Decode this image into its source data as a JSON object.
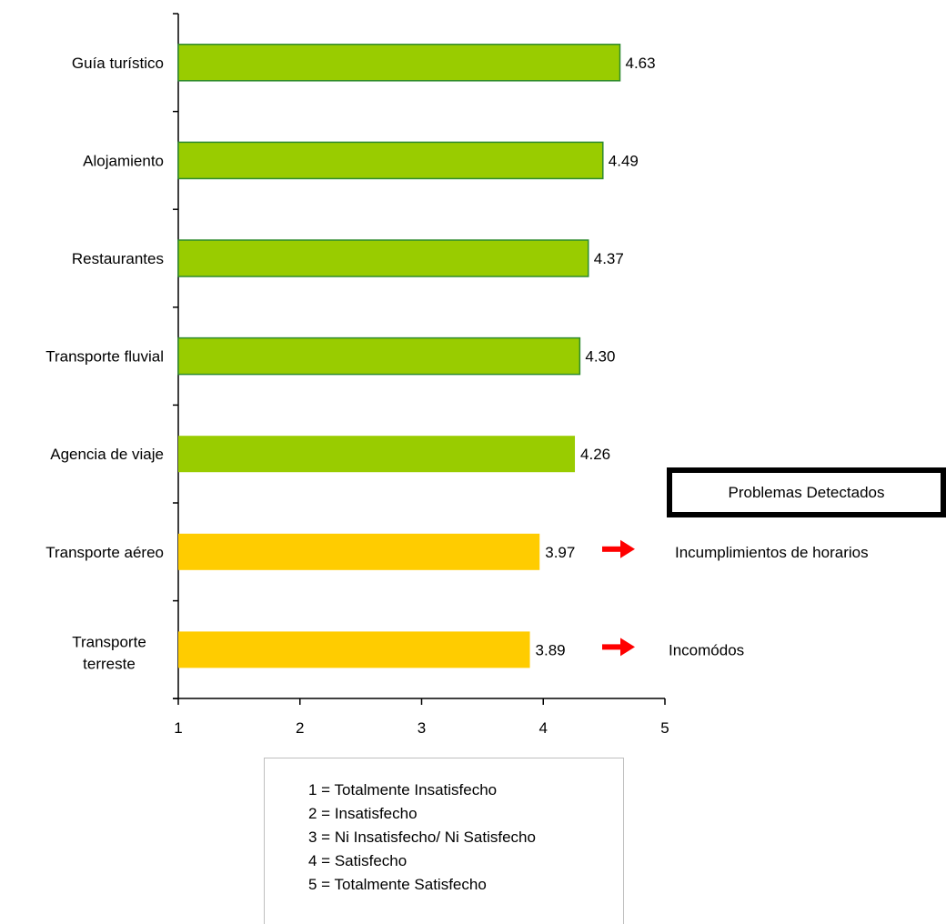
{
  "chart_data": {
    "type": "bar",
    "orientation": "horizontal",
    "categories": [
      "Guía turístico",
      "Alojamiento",
      "Restaurantes",
      "Transporte fluvial",
      "Agencia de viaje",
      "Transporte aéreo",
      "Transporte terreste"
    ],
    "values": [
      4.63,
      4.49,
      4.37,
      4.3,
      4.26,
      3.97,
      3.89
    ],
    "value_labels": [
      "4.63",
      "4.49",
      "4.37",
      "4.30",
      "4.26",
      "3.97",
      "3.89"
    ],
    "bar_colors": [
      "#99cc00",
      "#99cc00",
      "#99cc00",
      "#99cc00",
      "#99cc00",
      "#ffcc00",
      "#ffcc00"
    ],
    "bar_border_colors": [
      "#2e8b2e",
      "#2e8b2e",
      "#2e8b2e",
      "#2e8b2e",
      "",
      "",
      ""
    ],
    "xlim": [
      1,
      5
    ],
    "x_ticks": [
      "1",
      "2",
      "3",
      "4",
      "5"
    ],
    "title": "",
    "xlabel": "",
    "ylabel": "",
    "grid": false,
    "annotation_arrow_color": "#ff0000",
    "annotations": [
      {
        "category": "Transporte aéreo",
        "text": "Incumplimientos de horarios"
      },
      {
        "category": "Transporte terreste",
        "text": "Incomódos"
      }
    ]
  },
  "problems_box": {
    "title": "Problemas Detectados"
  },
  "scale_legend": [
    "1 = Totalmente Insatisfecho",
    "2 = Insatisfecho",
    "3 = Ni Insatisfecho/ Ni Satisfecho",
    "4 = Satisfecho",
    "5 = Totalmente Satisfecho"
  ]
}
